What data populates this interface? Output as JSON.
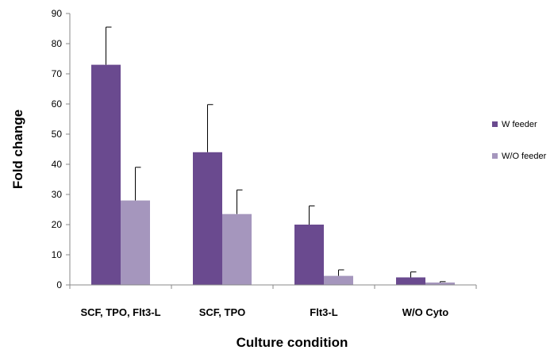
{
  "chart_data": {
    "type": "bar",
    "title": "",
    "xlabel": "Culture condition",
    "ylabel": "Fold change",
    "ylim": [
      0,
      90
    ],
    "yticks": [
      0,
      10,
      20,
      30,
      40,
      50,
      60,
      70,
      80,
      90
    ],
    "grid": false,
    "legend_position": "right",
    "categories": [
      "SCF, TPO, Flt3-L",
      "SCF, TPO",
      "Flt3-L",
      "W/O Cyto"
    ],
    "series": [
      {
        "name": "W feeder",
        "color": "#6a4a8f",
        "values": [
          73,
          44,
          20,
          2.5
        ],
        "errors": [
          12.5,
          15.8,
          6.2,
          1.8
        ]
      },
      {
        "name": "W/O feeder",
        "color": "#a596bd",
        "values": [
          28,
          23.5,
          3,
          0.8
        ],
        "errors": [
          11,
          8,
          2,
          0.3
        ]
      }
    ]
  }
}
